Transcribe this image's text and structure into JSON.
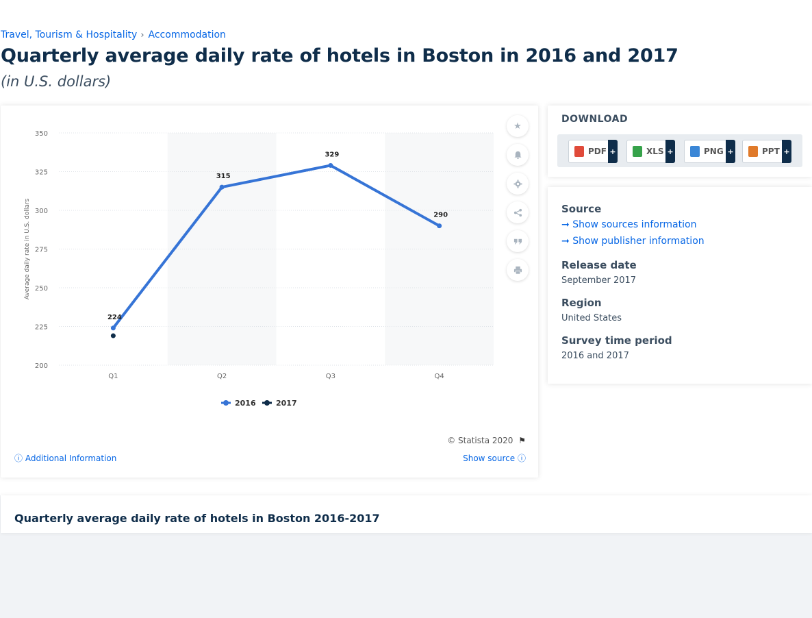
{
  "breadcrumb": {
    "items": [
      "Travel, Tourism & Hospitality",
      "Accommodation"
    ],
    "separator": "›"
  },
  "page": {
    "title": "Quarterly average daily rate of hotels in Boston in 2016 and 2017",
    "subtitle": "(in U.S. dollars)"
  },
  "chart_data": {
    "type": "line",
    "categories": [
      "Q1",
      "Q2",
      "Q3",
      "Q4"
    ],
    "series": [
      {
        "name": "2016",
        "color": "#3674d6",
        "values": [
          224,
          315,
          329,
          290
        ],
        "labels": [
          "224",
          "315",
          "329",
          "290"
        ]
      },
      {
        "name": "2017",
        "color": "#0f2d4a",
        "values": [
          219,
          null,
          null,
          null
        ],
        "labels": []
      }
    ],
    "ylabel": "Average daily rate in U.S. dollars",
    "ylim": [
      200,
      350
    ],
    "yticks": [
      "200",
      "225",
      "250",
      "275",
      "300",
      "325",
      "350"
    ],
    "grid": true,
    "legend_position": "bottom-center"
  },
  "chart_footer": {
    "copyright": "© Statista 2020",
    "additional_info": "Additional Information",
    "show_source": "Show source"
  },
  "tools": {
    "icons": [
      "star-icon",
      "bell-icon",
      "gear-icon",
      "share-icon",
      "quote-icon",
      "print-icon"
    ]
  },
  "download": {
    "title": "DOWNLOAD",
    "buttons": [
      {
        "label": "PDF",
        "color": "#e04a3a"
      },
      {
        "label": "XLS",
        "color": "#36a24a"
      },
      {
        "label": "PNG",
        "color": "#3a86d6"
      },
      {
        "label": "PPT",
        "color": "#e07a2a"
      }
    ],
    "plus": "+"
  },
  "info": {
    "source_label": "Source",
    "show_sources": "Show sources information",
    "show_publisher": "Show publisher information",
    "release_label": "Release date",
    "release_value": "September 2017",
    "region_label": "Region",
    "region_value": "United States",
    "survey_label": "Survey time period",
    "survey_value": "2016 and 2017"
  },
  "bottom": {
    "title": "Quarterly average daily rate of hotels in Boston 2016-2017"
  }
}
